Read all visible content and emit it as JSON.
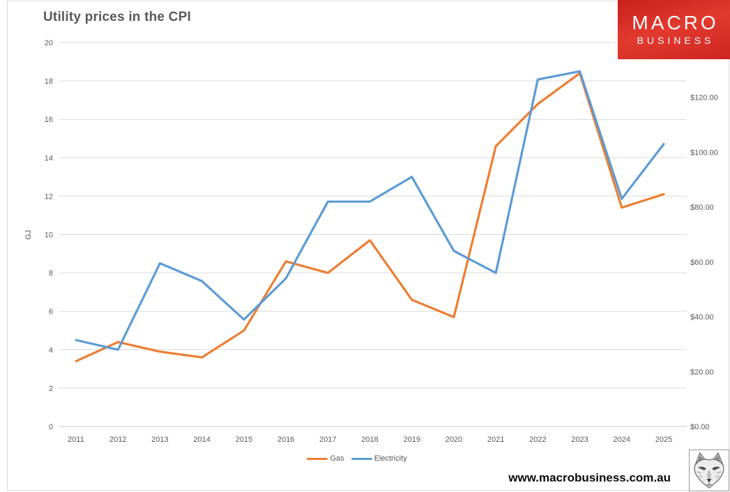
{
  "header": {
    "title": "Utility prices in the CPI"
  },
  "logo": {
    "line1": "MACRO",
    "line2": "BUSINESS",
    "bg_color": "#d7261f",
    "text_color": "#ffffff"
  },
  "footer": {
    "website": "www.macrobusiness.com.au",
    "wolf_icon": "wolf-sketch-image"
  },
  "chart_data": {
    "type": "line",
    "title": "Utility prices in the CPI",
    "categories": [
      "2011",
      "2012",
      "2013",
      "2014",
      "2015",
      "2016",
      "2017",
      "2018",
      "2019",
      "2020",
      "2021",
      "2022",
      "2023",
      "2024",
      "2025"
    ],
    "left_axis": {
      "label": "GJ",
      "min": 0,
      "max": 20,
      "step": 2,
      "tick_labels": [
        "0",
        "2",
        "4",
        "6",
        "8",
        "10",
        "12",
        "14",
        "16",
        "18",
        "20"
      ]
    },
    "right_axis": {
      "min": 0,
      "max": 140,
      "step": 20,
      "tick_labels": [
        "$0.00",
        "$20.00",
        "$40.00",
        "$60.00",
        "$80.00",
        "$100.00",
        "$120.00"
      ]
    },
    "grid": true,
    "legend_position": "bottom",
    "series": [
      {
        "name": "Gas",
        "color": "#ED7D31",
        "axis": "left",
        "values": [
          3.4,
          4.4,
          3.9,
          3.6,
          5.0,
          8.6,
          8.0,
          9.7,
          6.6,
          5.7,
          14.6,
          16.8,
          18.4,
          11.4,
          12.1
        ]
      },
      {
        "name": "Electricity",
        "color": "#5B9BD5",
        "axis": "right",
        "values": [
          31.5,
          28,
          59.5,
          53,
          39,
          54,
          82,
          82,
          91,
          64,
          56,
          126.5,
          129.5,
          83,
          103
        ]
      }
    ],
    "colors": {
      "gridline": "#d9d9d9",
      "axis_text": "#595959",
      "title_text": "#595959"
    }
  }
}
